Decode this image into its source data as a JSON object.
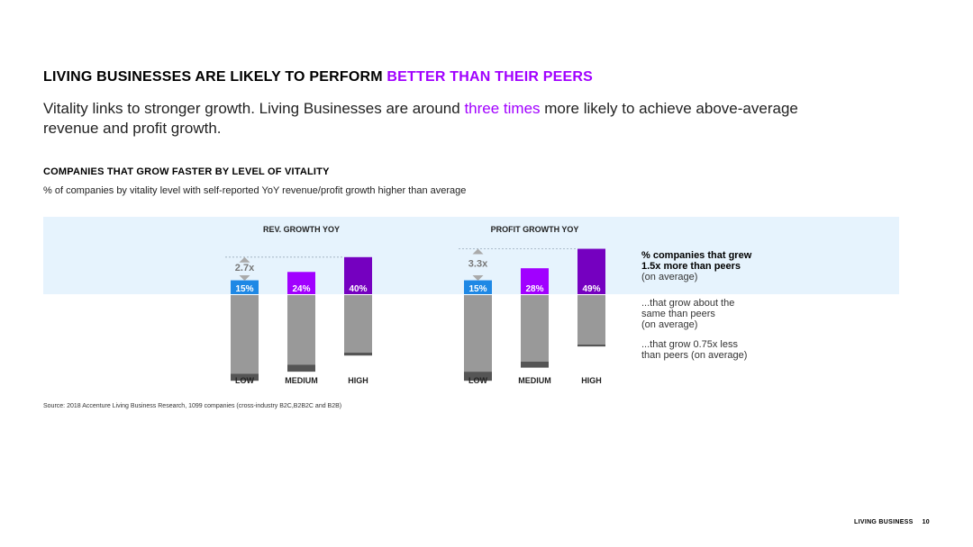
{
  "page": {
    "title_main": "LIVING BUSINESSES ARE LIKELY TO PERFORM ",
    "title_accent": "BETTER THAN THEIR PEERS",
    "subtitle_before": "Vitality links to stronger growth. Living Businesses are around ",
    "subtitle_accent": "three times",
    "subtitle_after": " more likely to achieve above-average revenue and profit growth.",
    "section_title": "COMPANIES THAT GROW FASTER BY LEVEL OF VITALITY",
    "section_subtitle": "% of companies by vitality level with self-reported YoY revenue/profit growth higher than average",
    "source": "Source: 2018 Accenture Living Business Research, 1099 companies (cross-industry B2C,B2B2C and B2B)",
    "footer_label": "LIVING BUSINESS",
    "page_number": "10"
  },
  "legend": {
    "above_bold_1": "% companies that grew",
    "above_bold_2": "1.5x more than peers",
    "above_normal": "(on average)",
    "same_1": "...that grow about the",
    "same_2": "same than peers",
    "same_3": "(on average)",
    "less_1": "...that grow 0.75x less",
    "less_2": "than peers (on average)"
  },
  "colors": {
    "low": "#1e88e5",
    "medium": "#a100ff",
    "high": "#7500c0",
    "same": "#999999",
    "less": "#555555",
    "band": "#e6f3fd",
    "multiplier": "#777777"
  },
  "chart_data": [
    {
      "type": "bar",
      "title": "REV. GROWTH YOY",
      "categories": [
        "LOW",
        "MEDIUM",
        "HIGH"
      ],
      "multiplier": "2.7x",
      "series": [
        {
          "values": [
            15,
            24,
            40
          ],
          "labels": [
            "15%",
            "24%",
            "40%"
          ]
        },
        {
          "values": [
            78,
            69,
            57
          ]
        },
        {
          "values": [
            7,
            7,
            3
          ]
        }
      ]
    },
    {
      "type": "bar",
      "title": "PROFIT GROWTH YOY",
      "categories": [
        "LOW",
        "MEDIUM",
        "HIGH"
      ],
      "multiplier": "3.3x",
      "series": [
        {
          "values": [
            15,
            28,
            49
          ],
          "labels": [
            "15%",
            "28%",
            "49%"
          ]
        },
        {
          "values": [
            76,
            66,
            49
          ]
        },
        {
          "values": [
            9,
            6,
            2
          ]
        }
      ]
    }
  ]
}
